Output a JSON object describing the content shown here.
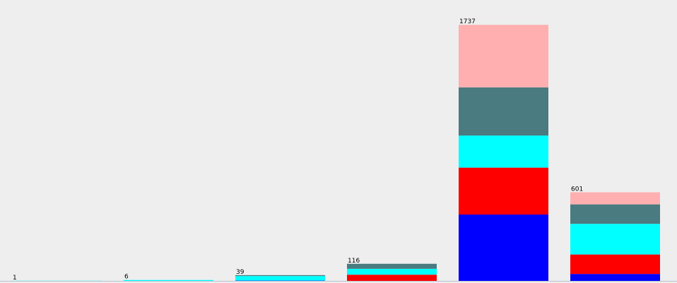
{
  "chart_data": {
    "type": "bar",
    "stacked": true,
    "categories": [
      "",
      "",
      "",
      "",
      "",
      ""
    ],
    "totals": [
      1,
      6,
      39,
      116,
      1737,
      601
    ],
    "total_labels": [
      "1",
      "6",
      "39",
      "116",
      "1737",
      "601"
    ],
    "ylim": [
      0,
      1800
    ],
    "grid": false,
    "legend": "none",
    "series": [
      {
        "color": "#0000ff",
        "values": [
          0,
          0,
          2,
          0,
          450,
          47
        ]
      },
      {
        "color": "#ff0000",
        "values": [
          0,
          0,
          0,
          42,
          318,
          132
        ]
      },
      {
        "color": "#00ffff",
        "values": [
          1,
          6,
          31,
          40,
          218,
          208
        ]
      },
      {
        "color": "#4a7b80",
        "values": [
          0,
          0,
          6,
          34,
          327,
          132
        ]
      },
      {
        "color": "#ffafaf",
        "values": [
          0,
          0,
          0,
          0,
          424,
          82
        ]
      }
    ]
  }
}
